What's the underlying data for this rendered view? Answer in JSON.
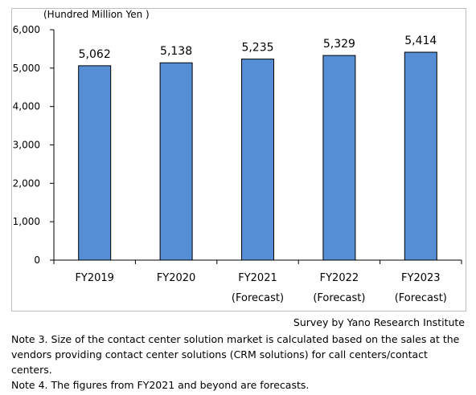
{
  "chart_data": {
    "type": "bar",
    "unit_label": "(Hundred Million Yen )",
    "categories": [
      "FY2019",
      "FY2020",
      "FY2021",
      "FY2022",
      "FY2023"
    ],
    "category_sublabels": [
      "",
      "",
      "(Forecast)",
      "(Forecast)",
      "(Forecast)"
    ],
    "values": [
      5062,
      5138,
      5235,
      5329,
      5414
    ],
    "value_labels": [
      "5,062",
      "5,138",
      "5,235",
      "5,329",
      "5,414"
    ],
    "ylim": [
      0,
      6000
    ],
    "yticks": [
      0,
      1000,
      2000,
      3000,
      4000,
      5000,
      6000
    ],
    "ytick_labels": [
      "0",
      "1,000",
      "2,000",
      "3,000",
      "4,000",
      "5,000",
      "6,000"
    ],
    "bar_color": "#558ed5",
    "bar_edge_color": "#000000",
    "grid": false,
    "legend": "none"
  },
  "source": "Survey by Yano Research Institute",
  "notes": [
    "Note 3.  Size of the contact center solution market is calculated based on the sales at the vendors providing contact center solutions (CRM solutions) for call centers/contact centers.",
    "Note 4.  The figures from FY2021 and beyond are forecasts."
  ]
}
